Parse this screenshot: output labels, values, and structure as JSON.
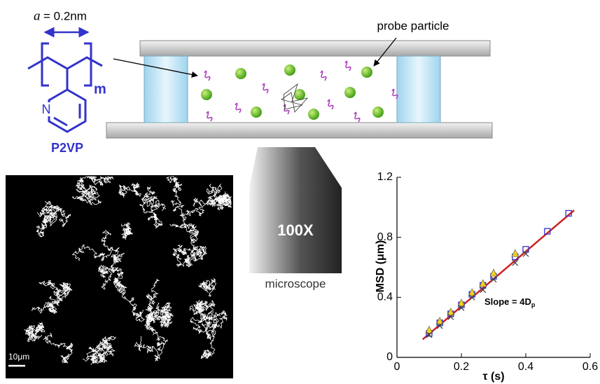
{
  "diagram": {
    "bond_label": {
      "symbol": "a",
      "text": "= 0.2nm"
    },
    "repeat_index": "m",
    "nitrogen": "N",
    "polymer_name": "P2VP",
    "probe_label": "probe particle",
    "objective_label": "100X",
    "microscope_label": "microscope",
    "scale_bar": "10μm"
  },
  "chart_data": {
    "type": "scatter",
    "xlabel": "τ (s)",
    "ylabel": "MSD (μm)",
    "annotation": {
      "text": "Slope = 4D",
      "subscript": "p"
    },
    "xlim": [
      0,
      0.6
    ],
    "ylim": [
      0,
      1.2
    ],
    "xticks": [
      0,
      0.2,
      0.4,
      0.6
    ],
    "yticks": [
      0,
      0.4,
      0.8,
      1.2
    ],
    "series": [
      {
        "marker": "square",
        "color": "#3333cc",
        "x": [
          0.1,
          0.133,
          0.167,
          0.2,
          0.233,
          0.267,
          0.3,
          0.367,
          0.4,
          0.467,
          0.533
        ],
        "values": [
          0.16,
          0.23,
          0.29,
          0.35,
          0.42,
          0.48,
          0.54,
          0.67,
          0.72,
          0.84,
          0.96
        ]
      },
      {
        "marker": "triangle",
        "color": "#f0d020",
        "x": [
          0.1,
          0.133,
          0.167,
          0.2,
          0.233,
          0.267,
          0.3,
          0.367
        ],
        "values": [
          0.18,
          0.24,
          0.3,
          0.36,
          0.43,
          0.49,
          0.56,
          0.69
        ]
      },
      {
        "marker": "cross",
        "color": "#444444",
        "x": [
          0.1,
          0.133,
          0.167,
          0.2,
          0.233,
          0.267,
          0.3,
          0.367,
          0.4
        ],
        "values": [
          0.15,
          0.21,
          0.27,
          0.33,
          0.4,
          0.45,
          0.52,
          0.63,
          0.69
        ]
      }
    ],
    "fit": {
      "color": "#cc2222",
      "x": [
        0.08,
        0.55
      ],
      "values": [
        0.12,
        0.98
      ]
    }
  }
}
